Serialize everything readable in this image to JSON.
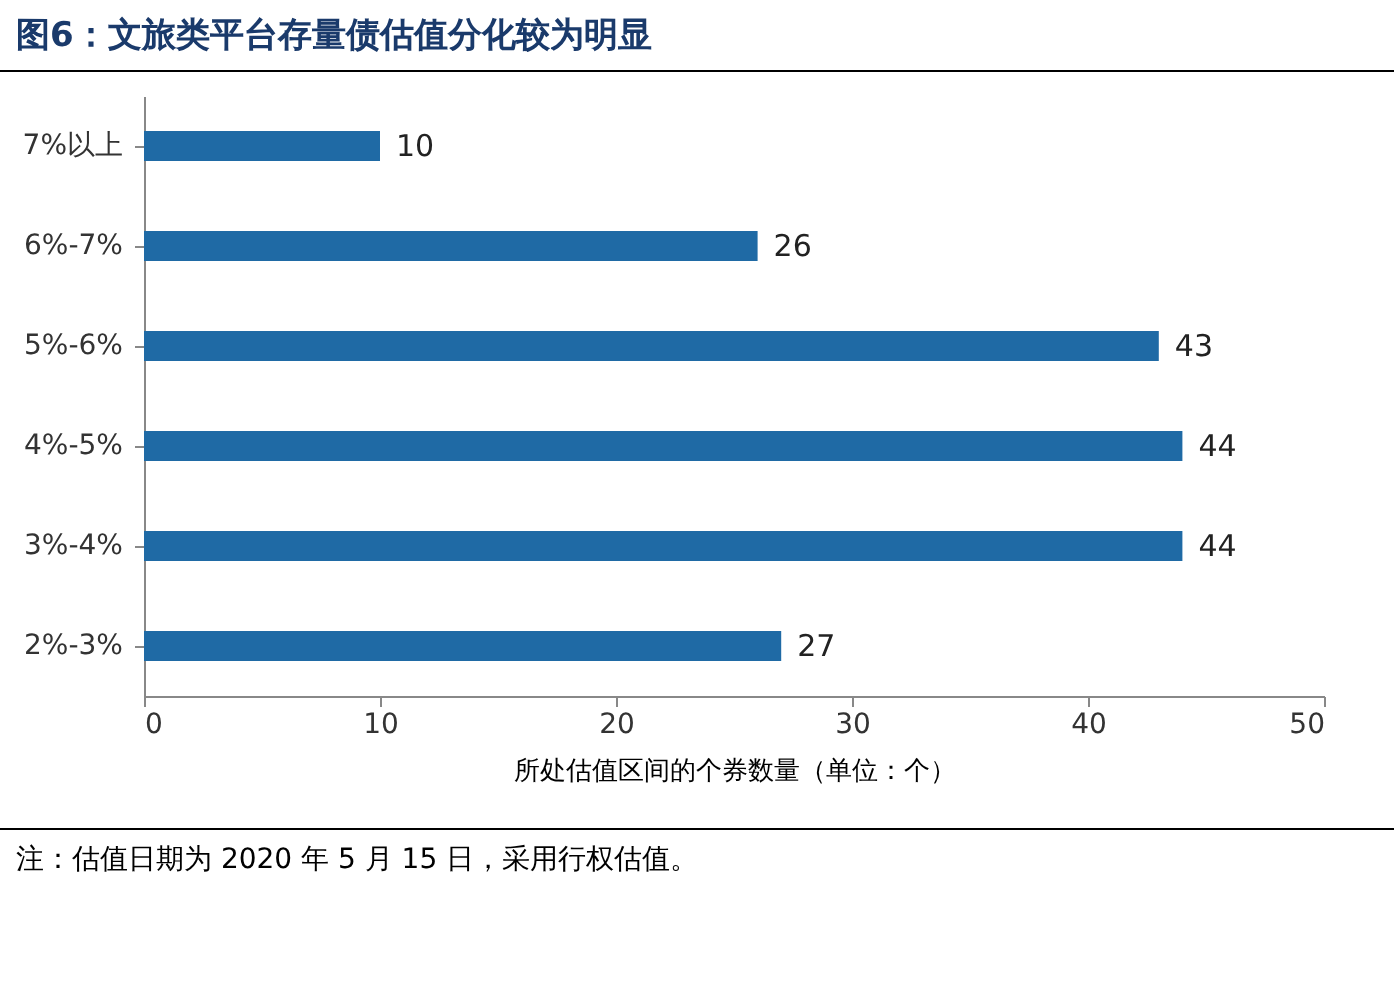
{
  "chart_data": {
    "type": "bar",
    "orientation": "horizontal",
    "title": "图6：文旅类平台存量债估值分化较为明显",
    "xlabel": "所处估值区间的个券数量（单位：个）",
    "categories": [
      "7%以上",
      "6%-7%",
      "5%-6%",
      "4%-5%",
      "3%-4%",
      "2%-3%"
    ],
    "values": [
      10,
      26,
      43,
      44,
      44,
      27
    ],
    "color": "#1f6aa5",
    "xlim": [
      0,
      50
    ],
    "xticks": [
      0,
      10,
      20,
      30,
      40,
      50
    ],
    "grid": false,
    "data_labels": true,
    "annotations": [
      "注：估值日期为 2020 年 5 月 15 日，采用行权估值。"
    ]
  }
}
